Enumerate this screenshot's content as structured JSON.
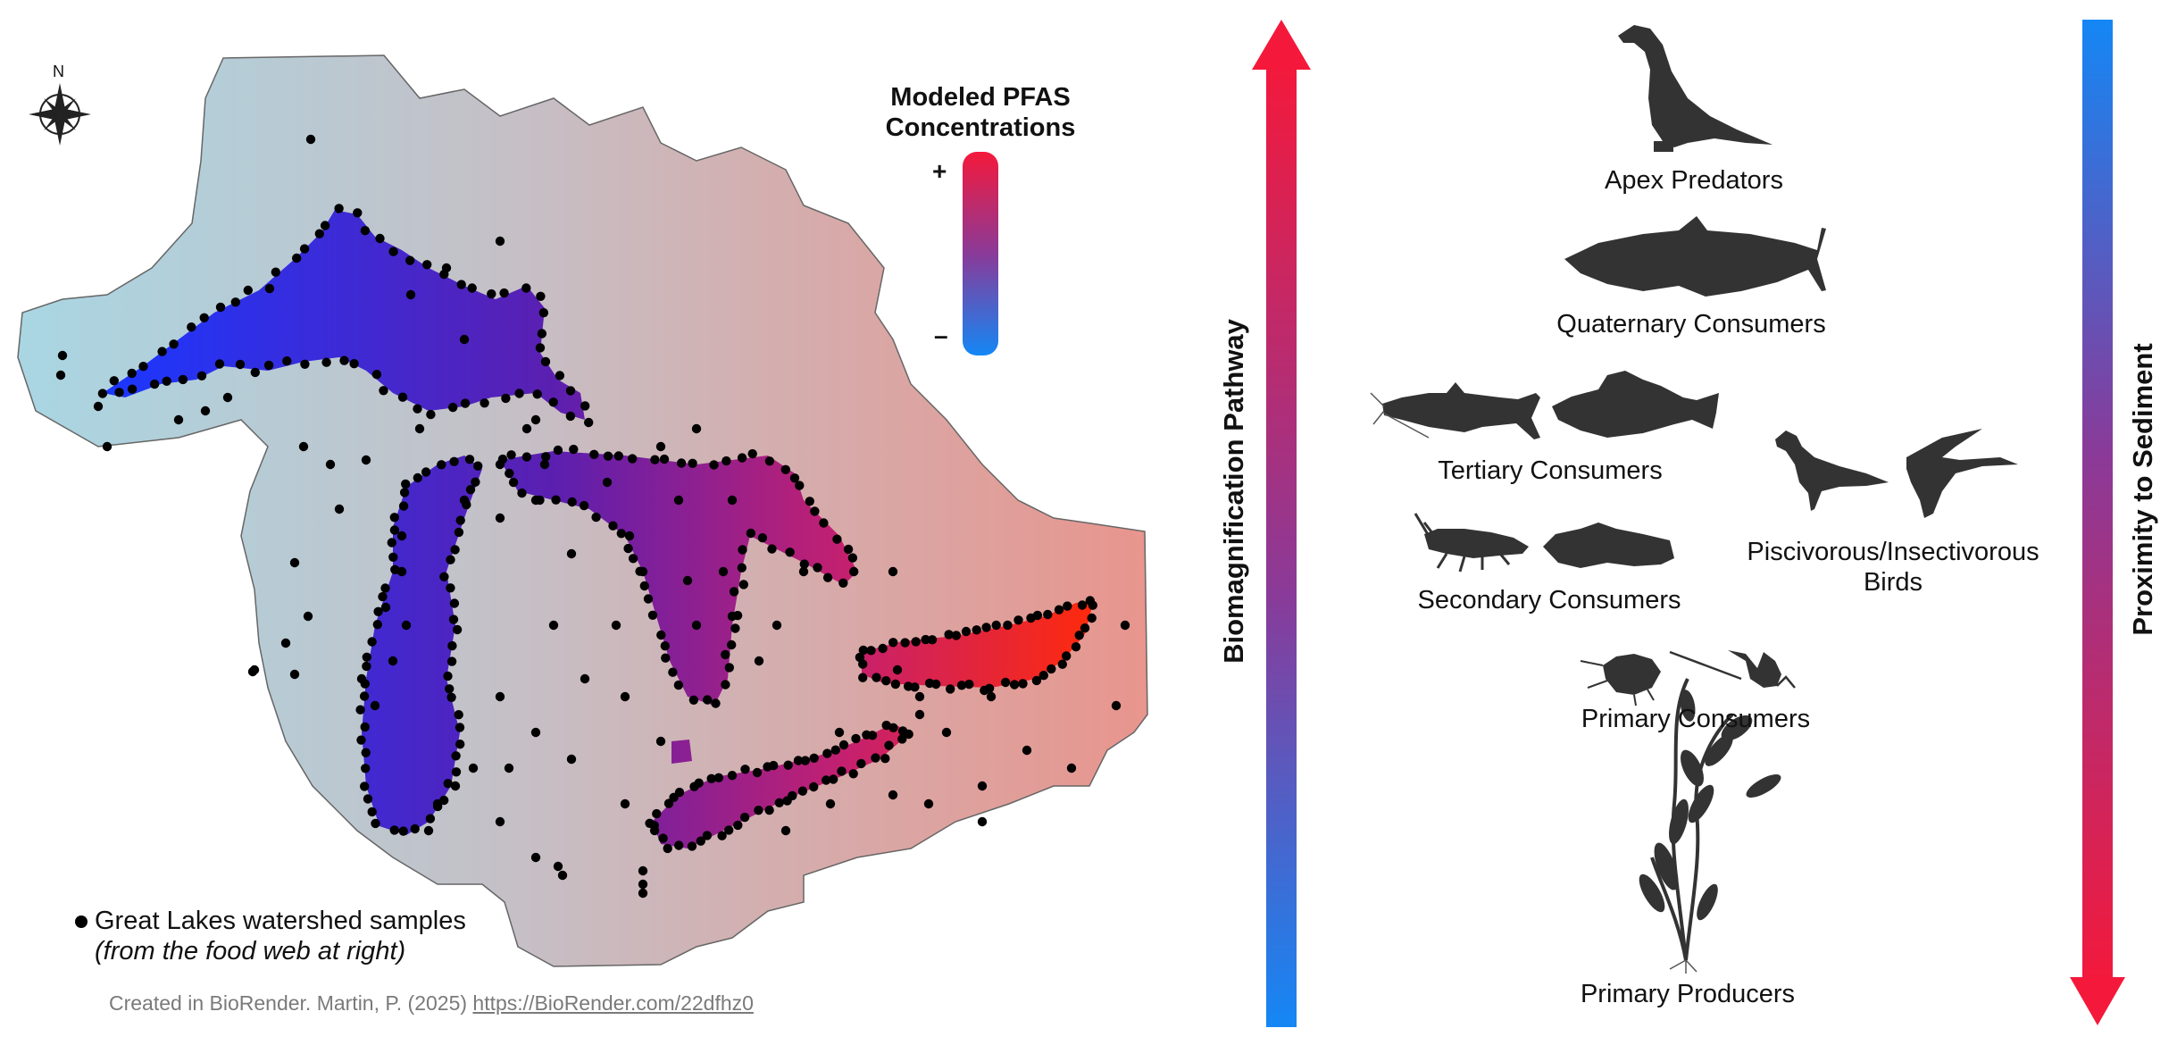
{
  "compass": {
    "north_label": "N",
    "icon": "compass-rose-icon"
  },
  "map": {
    "watershed_gradient": [
      "#a9d6e3",
      "#c6bfc5",
      "#e8958d"
    ],
    "lake_gradient": [
      "#1b37ff",
      "#5b1fb0",
      "#d4226a",
      "#ff2a0a"
    ],
    "sample_color": "#000000"
  },
  "legend": {
    "title_line1": "Modeled PFAS",
    "title_line2": "Concentrations",
    "plus_label": "+",
    "minus_label": "–",
    "gradient_colors": [
      "#f4193b",
      "#8a3a98",
      "#1487f5"
    ]
  },
  "samples_legend": {
    "label": "Great Lakes watershed samples",
    "sublabel": "(from the food web at right)"
  },
  "credit": {
    "text": "Created in BioRender. Martin, P. (2025) ",
    "link": "https://BioRender.com/22dfhz0"
  },
  "axes": {
    "left_label": "Biomagnification Pathway",
    "right_label": "Proximity to Sediment",
    "left_arrow_colors": [
      "#f4193b",
      "#1487f5"
    ],
    "right_arrow_colors": [
      "#1487f5",
      "#f4193b"
    ]
  },
  "food_web": {
    "silhouette_color": "#333333",
    "tiers": {
      "apex": {
        "label": "Apex Predators",
        "icon": "eagle-icon"
      },
      "quaternary": {
        "label": "Quaternary Consumers",
        "icon": "trout-icon"
      },
      "tertiary": {
        "label": "Tertiary Consumers",
        "icons": [
          "catfish-icon",
          "perch-icon"
        ]
      },
      "birds": {
        "label_line1": "Piscivorous/Insectivorous",
        "label_line2": "Birds",
        "icons": [
          "gull-icon",
          "swallow-icon"
        ]
      },
      "secondary": {
        "label": "Secondary Consumers",
        "icons": [
          "crayfish-icon",
          "goby-icon"
        ]
      },
      "primary_consumers": {
        "label": "Primary Consumers",
        "icons": [
          "amphipod-icon",
          "mayfly-icon"
        ]
      },
      "primary_producers": {
        "label": "Primary Producers",
        "icon": "aquatic-plant-icon"
      }
    }
  }
}
